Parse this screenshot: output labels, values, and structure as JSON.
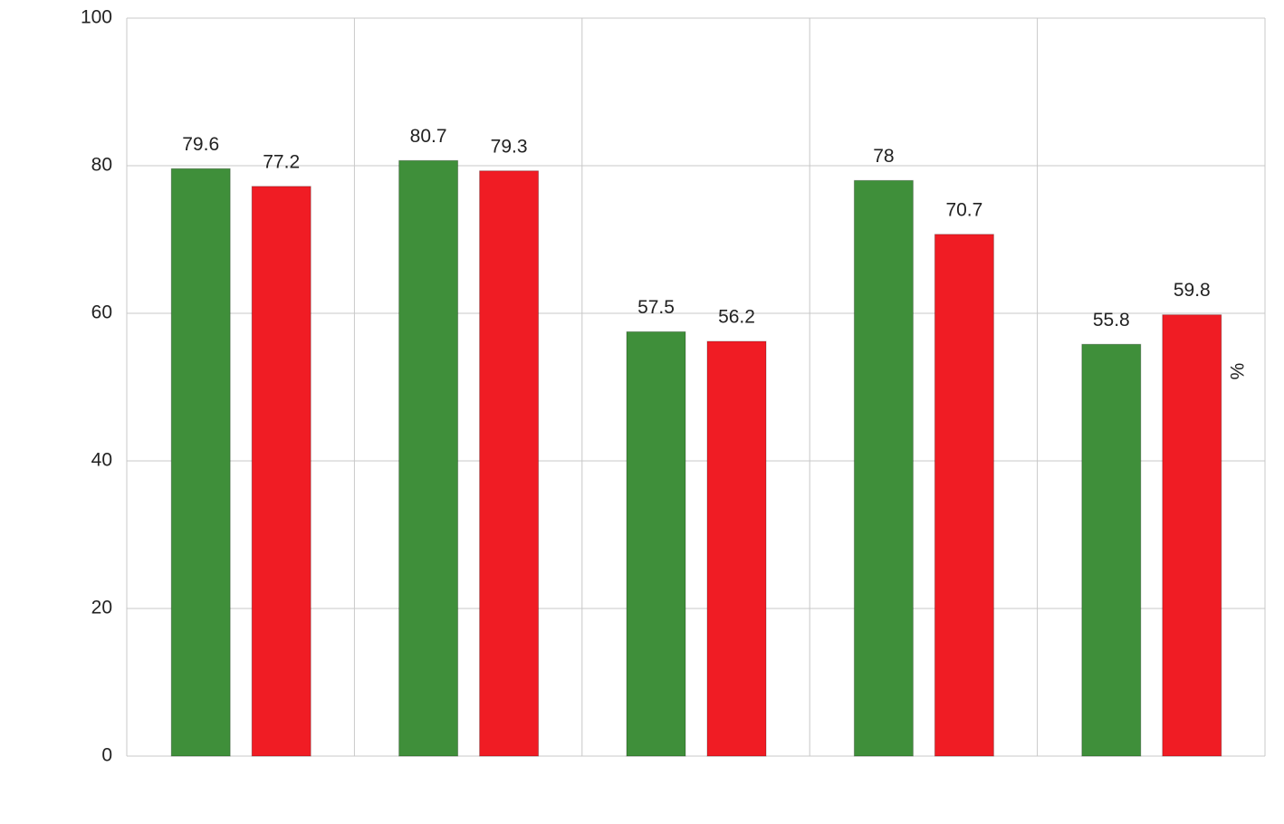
{
  "chart_data": {
    "type": "bar",
    "y_label": "%",
    "categories": [
      null,
      null,
      null,
      null,
      null
    ],
    "series": [
      {
        "color": "#3f8f3a",
        "values": [
          79.6,
          80.7,
          57.5,
          78,
          55.8
        ]
      },
      {
        "color": "#f01c24",
        "values": [
          77.2,
          79.3,
          56.2,
          70.7,
          59.8
        ]
      }
    ],
    "ylim": [
      0,
      100
    ],
    "yticks": [
      0,
      20,
      40,
      60,
      80,
      100
    ],
    "grid": true
  }
}
